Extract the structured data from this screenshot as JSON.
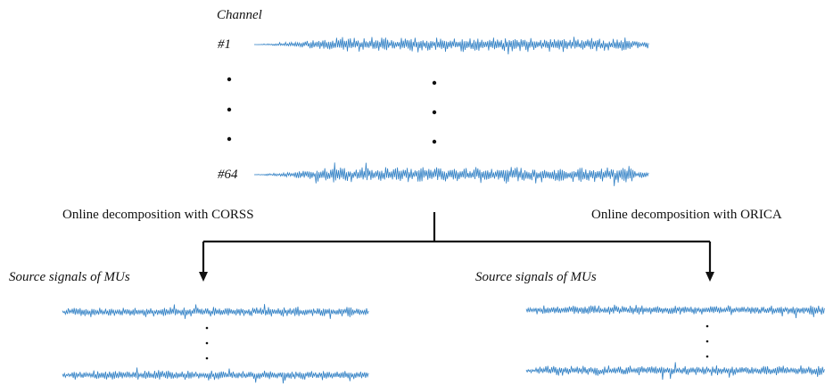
{
  "channel_header": "Channel",
  "channels": [
    {
      "label": "#1"
    },
    {
      "label": "#64"
    }
  ],
  "left_branch": {
    "method_label": "Online decomposition with CORSS",
    "sources_label": "Source signals of MUs"
  },
  "right_branch": {
    "method_label": "Online decomposition with ORICA",
    "sources_label": "Source signals of MUs"
  },
  "colors": {
    "signal": "#2f7fc4",
    "lines": "#111111",
    "dots": "#111111"
  }
}
